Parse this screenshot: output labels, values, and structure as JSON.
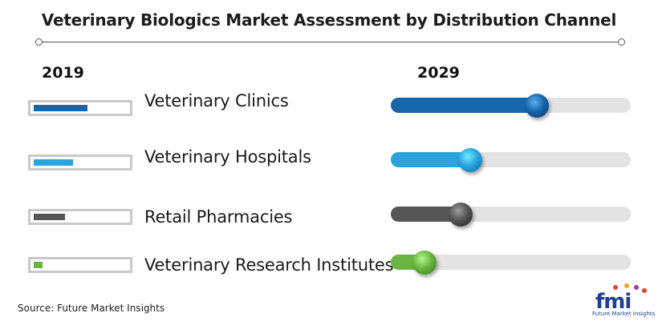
{
  "title": "Veterinary Biologics Market Assessment by Distribution Channel",
  "source": "Source: Future Market Insights",
  "logo": {
    "text": "fmi",
    "subtitle": "Future Market Insights"
  },
  "chart_data": {
    "type": "bar",
    "subtype": "horizontal-progress-comparison",
    "years": [
      "2019",
      "2029"
    ],
    "categories": [
      "Veterinary Clinics",
      "Veterinary Hospitals",
      "Retail Pharmacies",
      "Veterinary Research Institutes"
    ],
    "series": [
      {
        "name": "2019",
        "values": [
          0.59,
          0.43,
          0.34,
          0.1
        ]
      },
      {
        "name": "2029",
        "values": [
          0.61,
          0.33,
          0.29,
          0.14
        ]
      }
    ],
    "colors": [
      "#1767aa",
      "#2ba3dd",
      "#555555",
      "#6ab443"
    ],
    "ylim": [
      0,
      1
    ],
    "legend": "none",
    "grid": false
  }
}
